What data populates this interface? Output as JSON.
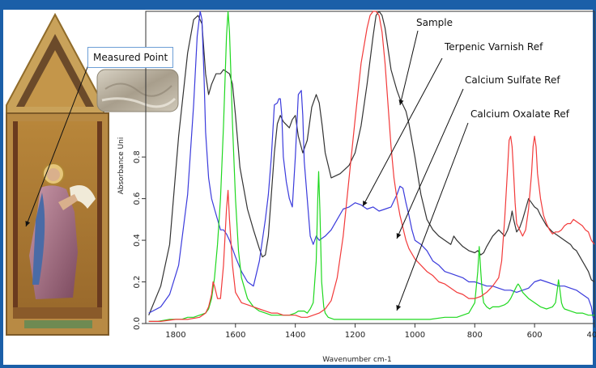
{
  "colors": {
    "frame": "#1b5fa8",
    "sample": "#333333",
    "terpenic_varnish": "#3b3bdc",
    "calcium_sulfate": "#1fd81f",
    "calcium_oxalate": "#f23a3a"
  },
  "painting": {
    "callout_label": "Measured Point",
    "icons": [
      "gothic-altarpiece-panel-image",
      "sample-micrograph-image"
    ]
  },
  "annotations": [
    "Sample",
    "Terpenic Varnish Ref",
    "Calcium Sulfate Ref",
    "Calcium Oxalate Ref"
  ],
  "chart_data": {
    "type": "line",
    "xlabel": "Wavenumber cm-1",
    "ylabel": "Absorbance Uni",
    "xlim": [
      1900,
      400
    ],
    "ylim": [
      0,
      1.5
    ],
    "x_reversed": true,
    "x_ticks": [
      "1800",
      "1600",
      "1400",
      "1200",
      "1000",
      "800",
      "600",
      "400"
    ],
    "y_ticks": [
      "0.0",
      "0.2",
      "0.4",
      "0.6",
      "0.8"
    ],
    "grid": false,
    "series": [
      {
        "name": "Sample",
        "color": "#333333",
        "x": [
          1890,
          1850,
          1820,
          1790,
          1760,
          1740,
          1725,
          1712,
          1700,
          1690,
          1680,
          1665,
          1650,
          1640,
          1630,
          1620,
          1610,
          1600,
          1585,
          1560,
          1540,
          1520,
          1510,
          1500,
          1490,
          1470,
          1460,
          1450,
          1440,
          1420,
          1410,
          1400,
          1390,
          1375,
          1360,
          1345,
          1330,
          1320,
          1310,
          1300,
          1280,
          1250,
          1220,
          1200,
          1180,
          1160,
          1140,
          1130,
          1120,
          1110,
          1100,
          1090,
          1080,
          1070,
          1060,
          1050,
          1040,
          1030,
          1020,
          1000,
          980,
          960,
          940,
          920,
          900,
          880,
          870,
          860,
          840,
          820,
          800,
          790,
          780,
          770,
          760,
          740,
          720,
          700,
          690,
          680,
          675,
          670,
          660,
          650,
          640,
          630,
          620,
          610,
          600,
          590,
          580,
          560,
          540,
          520,
          500,
          480,
          470,
          460,
          440,
          420,
          410,
          400
        ],
        "y": [
          0.04,
          0.18,
          0.38,
          0.9,
          1.3,
          1.46,
          1.48,
          1.44,
          1.2,
          1.1,
          1.15,
          1.2,
          1.2,
          1.22,
          1.21,
          1.2,
          1.15,
          1.0,
          0.75,
          0.55,
          0.45,
          0.36,
          0.32,
          0.33,
          0.42,
          0.82,
          0.96,
          1.0,
          0.97,
          0.94,
          0.98,
          1.0,
          0.9,
          0.82,
          0.88,
          1.04,
          1.1,
          1.06,
          0.95,
          0.82,
          0.7,
          0.72,
          0.76,
          0.82,
          0.95,
          1.15,
          1.38,
          1.48,
          1.5,
          1.48,
          1.42,
          1.32,
          1.22,
          1.17,
          1.12,
          1.08,
          1.05,
          1.02,
          0.96,
          0.8,
          0.62,
          0.5,
          0.45,
          0.42,
          0.4,
          0.38,
          0.42,
          0.4,
          0.37,
          0.35,
          0.34,
          0.35,
          0.33,
          0.34,
          0.37,
          0.42,
          0.45,
          0.42,
          0.45,
          0.5,
          0.54,
          0.5,
          0.44,
          0.46,
          0.5,
          0.55,
          0.6,
          0.58,
          0.56,
          0.55,
          0.52,
          0.47,
          0.44,
          0.42,
          0.4,
          0.38,
          0.36,
          0.35,
          0.3,
          0.25,
          0.21,
          0.2
        ]
      },
      {
        "name": "Terpenic Varnish Ref",
        "color": "#3b3bdc",
        "x": [
          1890,
          1850,
          1820,
          1790,
          1760,
          1740,
          1728,
          1718,
          1712,
          1705,
          1700,
          1690,
          1680,
          1670,
          1660,
          1650,
          1640,
          1630,
          1620,
          1610,
          1600,
          1580,
          1560,
          1540,
          1520,
          1500,
          1490,
          1480,
          1470,
          1460,
          1455,
          1450,
          1445,
          1440,
          1430,
          1420,
          1410,
          1400,
          1390,
          1380,
          1375,
          1370,
          1360,
          1350,
          1340,
          1330,
          1320,
          1300,
          1280,
          1260,
          1240,
          1220,
          1200,
          1180,
          1160,
          1140,
          1120,
          1100,
          1080,
          1060,
          1050,
          1040,
          1030,
          1020,
          1010,
          1000,
          980,
          960,
          940,
          920,
          900,
          880,
          860,
          840,
          820,
          800,
          780,
          760,
          740,
          720,
          700,
          680,
          660,
          640,
          620,
          600,
          580,
          560,
          540,
          520,
          500,
          480,
          460,
          440,
          420,
          410,
          405,
          400
        ],
        "y": [
          0.05,
          0.08,
          0.14,
          0.28,
          0.62,
          1.05,
          1.38,
          1.5,
          1.46,
          1.18,
          0.92,
          0.7,
          0.6,
          0.55,
          0.5,
          0.45,
          0.45,
          0.43,
          0.4,
          0.36,
          0.32,
          0.25,
          0.2,
          0.18,
          0.3,
          0.5,
          0.62,
          0.8,
          1.05,
          1.06,
          1.08,
          1.08,
          1.0,
          0.8,
          0.68,
          0.6,
          0.56,
          0.8,
          1.1,
          1.12,
          1.0,
          0.78,
          0.6,
          0.42,
          0.38,
          0.42,
          0.4,
          0.42,
          0.45,
          0.5,
          0.55,
          0.56,
          0.58,
          0.57,
          0.55,
          0.56,
          0.54,
          0.55,
          0.56,
          0.62,
          0.66,
          0.65,
          0.58,
          0.52,
          0.45,
          0.4,
          0.38,
          0.35,
          0.3,
          0.28,
          0.25,
          0.24,
          0.23,
          0.22,
          0.2,
          0.2,
          0.19,
          0.18,
          0.18,
          0.17,
          0.16,
          0.16,
          0.15,
          0.16,
          0.17,
          0.2,
          0.21,
          0.2,
          0.19,
          0.18,
          0.18,
          0.17,
          0.16,
          0.14,
          0.12,
          0.08,
          0.03,
          0.02
        ]
      },
      {
        "name": "Calcium Sulfate Ref",
        "color": "#1fd81f",
        "x": [
          1890,
          1860,
          1820,
          1780,
          1760,
          1740,
          1720,
          1700,
          1690,
          1680,
          1670,
          1660,
          1650,
          1640,
          1630,
          1625,
          1620,
          1615,
          1610,
          1600,
          1590,
          1580,
          1560,
          1540,
          1520,
          1500,
          1480,
          1460,
          1440,
          1420,
          1400,
          1390,
          1380,
          1370,
          1360,
          1350,
          1340,
          1330,
          1325,
          1322,
          1318,
          1312,
          1305,
          1300,
          1290,
          1270,
          1250,
          1200,
          1100,
          1000,
          950,
          900,
          860,
          840,
          820,
          800,
          790,
          785,
          780,
          775,
          770,
          760,
          750,
          740,
          730,
          720,
          700,
          690,
          680,
          670,
          660,
          655,
          650,
          640,
          620,
          600,
          580,
          560,
          540,
          530,
          525,
          520,
          515,
          510,
          505,
          500,
          480,
          460,
          440,
          420,
          410,
          400
        ],
        "y": [
          0.01,
          0.01,
          0.02,
          0.02,
          0.03,
          0.03,
          0.04,
          0.05,
          0.07,
          0.12,
          0.22,
          0.38,
          0.6,
          0.95,
          1.38,
          1.5,
          1.4,
          1.18,
          0.96,
          0.6,
          0.35,
          0.22,
          0.12,
          0.08,
          0.06,
          0.05,
          0.04,
          0.04,
          0.04,
          0.04,
          0.05,
          0.06,
          0.06,
          0.06,
          0.05,
          0.07,
          0.1,
          0.3,
          0.6,
          0.73,
          0.55,
          0.2,
          0.08,
          0.05,
          0.03,
          0.02,
          0.02,
          0.02,
          0.02,
          0.02,
          0.02,
          0.03,
          0.03,
          0.04,
          0.05,
          0.1,
          0.25,
          0.37,
          0.25,
          0.15,
          0.1,
          0.08,
          0.07,
          0.08,
          0.08,
          0.08,
          0.09,
          0.1,
          0.12,
          0.15,
          0.18,
          0.19,
          0.18,
          0.15,
          0.12,
          0.1,
          0.08,
          0.07,
          0.08,
          0.1,
          0.15,
          0.21,
          0.16,
          0.1,
          0.08,
          0.07,
          0.06,
          0.05,
          0.05,
          0.04,
          0.04,
          0.04
        ]
      },
      {
        "name": "Calcium Oxalate Ref",
        "color": "#f23a3a",
        "x": [
          1890,
          1850,
          1800,
          1760,
          1720,
          1700,
          1690,
          1680,
          1675,
          1670,
          1660,
          1650,
          1640,
          1630,
          1625,
          1620,
          1610,
          1600,
          1580,
          1560,
          1540,
          1520,
          1500,
          1480,
          1460,
          1440,
          1420,
          1400,
          1380,
          1360,
          1340,
          1320,
          1300,
          1280,
          1260,
          1240,
          1220,
          1200,
          1180,
          1160,
          1150,
          1140,
          1130,
          1120,
          1110,
          1100,
          1090,
          1080,
          1070,
          1060,
          1050,
          1040,
          1030,
          1020,
          1000,
          980,
          960,
          940,
          920,
          900,
          880,
          860,
          840,
          820,
          800,
          780,
          760,
          740,
          720,
          710,
          700,
          690,
          685,
          680,
          675,
          670,
          665,
          660,
          650,
          640,
          630,
          620,
          610,
          605,
          600,
          595,
          590,
          580,
          570,
          560,
          550,
          540,
          530,
          520,
          510,
          500,
          490,
          480,
          470,
          460,
          450,
          440,
          430,
          420,
          410,
          400
        ],
        "y": [
          0.01,
          0.01,
          0.02,
          0.02,
          0.03,
          0.05,
          0.08,
          0.14,
          0.2,
          0.18,
          0.12,
          0.12,
          0.28,
          0.55,
          0.64,
          0.5,
          0.28,
          0.15,
          0.1,
          0.09,
          0.08,
          0.07,
          0.06,
          0.05,
          0.05,
          0.04,
          0.04,
          0.04,
          0.03,
          0.03,
          0.04,
          0.05,
          0.07,
          0.11,
          0.22,
          0.42,
          0.7,
          0.98,
          1.25,
          1.42,
          1.48,
          1.5,
          1.5,
          1.48,
          1.4,
          1.25,
          1.05,
          0.85,
          0.7,
          0.6,
          0.52,
          0.46,
          0.4,
          0.36,
          0.31,
          0.28,
          0.25,
          0.23,
          0.2,
          0.19,
          0.17,
          0.15,
          0.14,
          0.12,
          0.12,
          0.13,
          0.15,
          0.18,
          0.22,
          0.3,
          0.5,
          0.75,
          0.88,
          0.9,
          0.85,
          0.72,
          0.58,
          0.48,
          0.45,
          0.42,
          0.45,
          0.55,
          0.72,
          0.85,
          0.9,
          0.85,
          0.72,
          0.6,
          0.52,
          0.48,
          0.45,
          0.43,
          0.44,
          0.44,
          0.45,
          0.47,
          0.48,
          0.48,
          0.5,
          0.49,
          0.48,
          0.47,
          0.45,
          0.44,
          0.4,
          0.38
        ]
      }
    ]
  }
}
